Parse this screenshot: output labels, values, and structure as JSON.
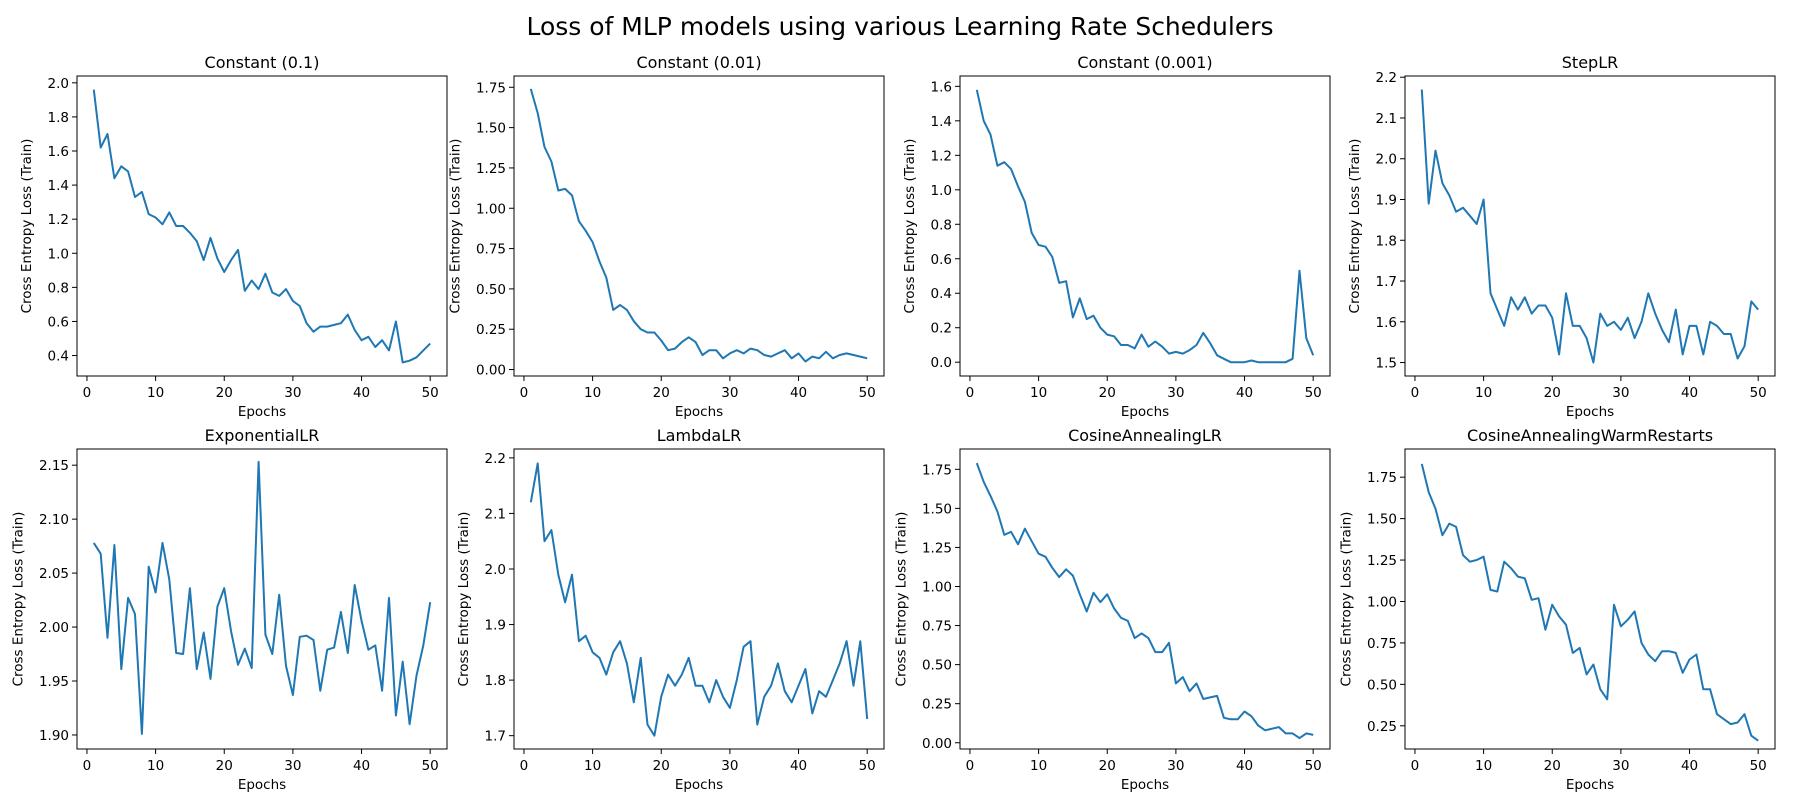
{
  "figure": {
    "title": "Loss of MLP models using various Learning Rate Schedulers",
    "line_color": "#1f77b4"
  },
  "chart_data": [
    {
      "type": "line",
      "title": "Constant (0.1)",
      "xlabel": "Epochs",
      "ylabel": "Cross Entropy Loss (Train)",
      "xlim": [
        -1.45,
        52.45
      ],
      "ylim": [
        0.28,
        2.04
      ],
      "xticks": [
        0,
        10,
        20,
        30,
        40,
        50
      ],
      "yticks": [
        0.4,
        0.6,
        0.8,
        1.0,
        1.2,
        1.4,
        1.6,
        1.8,
        2.0
      ],
      "ytick_labels": [
        "0.4",
        "0.6",
        "0.8",
        "1.0",
        "1.2",
        "1.4",
        "1.6",
        "1.8",
        "2.0"
      ],
      "grid": false,
      "series": [
        {
          "x": [
            1,
            2,
            3,
            4,
            5,
            6,
            7,
            8,
            9,
            10,
            11,
            12,
            13,
            14,
            15,
            16,
            17,
            18,
            19,
            20,
            21,
            22,
            23,
            24,
            25,
            26,
            27,
            28,
            29,
            30,
            31,
            32,
            33,
            34,
            35,
            36,
            37,
            38,
            39,
            40,
            41,
            42,
            43,
            44,
            45,
            46,
            47,
            48,
            49,
            50
          ],
          "values": [
            1.96,
            1.62,
            1.7,
            1.44,
            1.51,
            1.48,
            1.33,
            1.36,
            1.23,
            1.21,
            1.17,
            1.24,
            1.16,
            1.16,
            1.12,
            1.07,
            0.96,
            1.09,
            0.97,
            0.89,
            0.96,
            1.02,
            0.78,
            0.84,
            0.79,
            0.88,
            0.77,
            0.75,
            0.79,
            0.72,
            0.69,
            0.59,
            0.54,
            0.57,
            0.57,
            0.58,
            0.59,
            0.64,
            0.55,
            0.49,
            0.51,
            0.45,
            0.49,
            0.43,
            0.6,
            0.36,
            0.37,
            0.39,
            0.43,
            0.47
          ]
        }
      ]
    },
    {
      "type": "line",
      "title": "Constant (0.01)",
      "xlabel": "Epochs",
      "ylabel": "Cross Entropy Loss (Train)",
      "xlim": [
        -1.45,
        52.45
      ],
      "ylim": [
        -0.04,
        1.82
      ],
      "xticks": [
        0,
        10,
        20,
        30,
        40,
        50
      ],
      "yticks": [
        0.0,
        0.25,
        0.5,
        0.75,
        1.0,
        1.25,
        1.5,
        1.75
      ],
      "ytick_labels": [
        "0.00",
        "0.25",
        "0.50",
        "0.75",
        "1.00",
        "1.25",
        "1.50",
        "1.75"
      ],
      "grid": false,
      "series": [
        {
          "x": [
            1,
            2,
            3,
            4,
            5,
            6,
            7,
            8,
            9,
            10,
            11,
            12,
            13,
            14,
            15,
            16,
            17,
            18,
            19,
            20,
            21,
            22,
            23,
            24,
            25,
            26,
            27,
            28,
            29,
            30,
            31,
            32,
            33,
            34,
            35,
            36,
            37,
            38,
            39,
            40,
            41,
            42,
            43,
            44,
            45,
            46,
            47,
            48,
            49,
            50
          ],
          "values": [
            1.74,
            1.59,
            1.38,
            1.29,
            1.11,
            1.12,
            1.08,
            0.92,
            0.86,
            0.79,
            0.67,
            0.57,
            0.37,
            0.4,
            0.37,
            0.3,
            0.25,
            0.23,
            0.23,
            0.18,
            0.12,
            0.13,
            0.17,
            0.2,
            0.17,
            0.09,
            0.12,
            0.12,
            0.07,
            0.1,
            0.12,
            0.1,
            0.13,
            0.12,
            0.09,
            0.08,
            0.1,
            0.12,
            0.07,
            0.1,
            0.05,
            0.08,
            0.07,
            0.11,
            0.07,
            0.09,
            0.1,
            0.09,
            0.08,
            0.07
          ]
        }
      ]
    },
    {
      "type": "line",
      "title": "Constant (0.001)",
      "xlabel": "Epochs",
      "ylabel": "Cross Entropy Loss (Train)",
      "xlim": [
        -1.45,
        52.45
      ],
      "ylim": [
        -0.08,
        1.66
      ],
      "xticks": [
        0,
        10,
        20,
        30,
        40,
        50
      ],
      "yticks": [
        0.0,
        0.2,
        0.4,
        0.6,
        0.8,
        1.0,
        1.2,
        1.4,
        1.6
      ],
      "ytick_labels": [
        "0.0",
        "0.2",
        "0.4",
        "0.6",
        "0.8",
        "1.0",
        "1.2",
        "1.4",
        "1.6"
      ],
      "grid": false,
      "series": [
        {
          "x": [
            1,
            2,
            3,
            4,
            5,
            6,
            7,
            8,
            9,
            10,
            11,
            12,
            13,
            14,
            15,
            16,
            17,
            18,
            19,
            20,
            21,
            22,
            23,
            24,
            25,
            26,
            27,
            28,
            29,
            30,
            31,
            32,
            33,
            34,
            35,
            36,
            37,
            38,
            39,
            40,
            41,
            42,
            43,
            44,
            45,
            46,
            47,
            48,
            49,
            50
          ],
          "values": [
            1.58,
            1.4,
            1.32,
            1.14,
            1.16,
            1.12,
            1.02,
            0.93,
            0.75,
            0.68,
            0.67,
            0.61,
            0.46,
            0.47,
            0.26,
            0.37,
            0.25,
            0.27,
            0.2,
            0.16,
            0.15,
            0.1,
            0.1,
            0.08,
            0.16,
            0.09,
            0.12,
            0.09,
            0.05,
            0.06,
            0.05,
            0.07,
            0.1,
            0.17,
            0.11,
            0.04,
            0.02,
            0.0,
            0.0,
            0.0,
            0.01,
            0.0,
            0.0,
            0.0,
            0.0,
            0.0,
            0.02,
            0.53,
            0.14,
            0.04
          ]
        }
      ]
    },
    {
      "type": "line",
      "title": "StepLR",
      "xlabel": "Epochs",
      "ylabel": "Cross Entropy Loss (Train)",
      "xlim": [
        -1.45,
        52.45
      ],
      "ylim": [
        1.467,
        2.203
      ],
      "xticks": [
        0,
        10,
        20,
        30,
        40,
        50
      ],
      "yticks": [
        1.5,
        1.6,
        1.7,
        1.8,
        1.9,
        2.0,
        2.1,
        2.2
      ],
      "ytick_labels": [
        "1.5",
        "1.6",
        "1.7",
        "1.8",
        "1.9",
        "2.0",
        "2.1",
        "2.2"
      ],
      "grid": false,
      "series": [
        {
          "x": [
            1,
            2,
            3,
            4,
            5,
            6,
            7,
            8,
            9,
            10,
            11,
            12,
            13,
            14,
            15,
            16,
            17,
            18,
            19,
            20,
            21,
            22,
            23,
            24,
            25,
            26,
            27,
            28,
            29,
            30,
            31,
            32,
            33,
            34,
            35,
            36,
            37,
            38,
            39,
            40,
            41,
            42,
            43,
            44,
            45,
            46,
            47,
            48,
            49,
            50
          ],
          "values": [
            2.17,
            1.89,
            2.02,
            1.94,
            1.91,
            1.87,
            1.88,
            1.86,
            1.84,
            1.9,
            1.67,
            1.63,
            1.59,
            1.66,
            1.63,
            1.66,
            1.62,
            1.64,
            1.64,
            1.61,
            1.52,
            1.67,
            1.59,
            1.59,
            1.56,
            1.5,
            1.62,
            1.59,
            1.6,
            1.58,
            1.61,
            1.56,
            1.6,
            1.67,
            1.62,
            1.58,
            1.55,
            1.63,
            1.52,
            1.59,
            1.59,
            1.52,
            1.6,
            1.59,
            1.57,
            1.57,
            1.51,
            1.54,
            1.65,
            1.63
          ]
        }
      ]
    },
    {
      "type": "line",
      "title": "ExponentialLR",
      "xlabel": "Epochs",
      "ylabel": "Cross Entropy Loss (Train)",
      "xlim": [
        -1.45,
        52.45
      ],
      "ylim": [
        1.887,
        2.165
      ],
      "xticks": [
        0,
        10,
        20,
        30,
        40,
        50
      ],
      "yticks": [
        1.9,
        1.95,
        2.0,
        2.05,
        2.1,
        2.15
      ],
      "ytick_labels": [
        "1.90",
        "1.95",
        "2.00",
        "2.05",
        "2.10",
        "2.15"
      ],
      "grid": false,
      "series": [
        {
          "x": [
            1,
            2,
            3,
            4,
            5,
            6,
            7,
            8,
            9,
            10,
            11,
            12,
            13,
            14,
            15,
            16,
            17,
            18,
            19,
            20,
            21,
            22,
            23,
            24,
            25,
            26,
            27,
            28,
            29,
            30,
            31,
            32,
            33,
            34,
            35,
            36,
            37,
            38,
            39,
            40,
            41,
            42,
            43,
            44,
            45,
            46,
            47,
            48,
            49,
            50
          ],
          "values": [
            2.078,
            2.068,
            1.99,
            2.076,
            1.961,
            2.027,
            2.012,
            1.901,
            2.056,
            2.032,
            2.078,
            2.044,
            1.976,
            1.975,
            2.036,
            1.961,
            1.995,
            1.952,
            2.019,
            2.036,
            1.996,
            1.965,
            1.98,
            1.962,
            2.153,
            1.993,
            1.975,
            2.03,
            1.964,
            1.937,
            1.991,
            1.992,
            1.988,
            1.941,
            1.979,
            1.981,
            2.014,
            1.976,
            2.039,
            2.006,
            1.979,
            1.983,
            1.941,
            2.027,
            1.918,
            1.968,
            1.91,
            1.955,
            1.983,
            2.023
          ]
        }
      ]
    },
    {
      "type": "line",
      "title": "LambdaLR",
      "xlabel": "Epochs",
      "ylabel": "Cross Entropy Loss (Train)",
      "xlim": [
        -1.45,
        52.45
      ],
      "ylim": [
        1.676,
        2.216
      ],
      "xticks": [
        0,
        10,
        20,
        30,
        40,
        50
      ],
      "yticks": [
        1.7,
        1.8,
        1.9,
        2.0,
        2.1,
        2.2
      ],
      "ytick_labels": [
        "1.7",
        "1.8",
        "1.9",
        "2.0",
        "2.1",
        "2.2"
      ],
      "grid": false,
      "series": [
        {
          "x": [
            1,
            2,
            3,
            4,
            5,
            6,
            7,
            8,
            9,
            10,
            11,
            12,
            13,
            14,
            15,
            16,
            17,
            18,
            19,
            20,
            21,
            22,
            23,
            24,
            25,
            26,
            27,
            28,
            29,
            30,
            31,
            32,
            33,
            34,
            35,
            36,
            37,
            38,
            39,
            40,
            41,
            42,
            43,
            44,
            45,
            46,
            47,
            48,
            49,
            50
          ],
          "values": [
            2.12,
            2.19,
            2.05,
            2.07,
            1.99,
            1.94,
            1.99,
            1.87,
            1.88,
            1.85,
            1.84,
            1.81,
            1.85,
            1.87,
            1.83,
            1.76,
            1.84,
            1.72,
            1.7,
            1.77,
            1.81,
            1.79,
            1.81,
            1.84,
            1.79,
            1.79,
            1.76,
            1.8,
            1.77,
            1.75,
            1.8,
            1.86,
            1.87,
            1.72,
            1.77,
            1.79,
            1.83,
            1.78,
            1.76,
            1.79,
            1.82,
            1.74,
            1.78,
            1.77,
            1.8,
            1.83,
            1.87,
            1.79,
            1.87,
            1.73
          ]
        }
      ]
    },
    {
      "type": "line",
      "title": "CosineAnnealingLR",
      "xlabel": "Epochs",
      "ylabel": "Cross Entropy Loss (Train)",
      "xlim": [
        -1.45,
        52.45
      ],
      "ylim": [
        -0.04,
        1.88
      ],
      "xticks": [
        0,
        10,
        20,
        30,
        40,
        50
      ],
      "yticks": [
        0.0,
        0.25,
        0.5,
        0.75,
        1.0,
        1.25,
        1.5,
        1.75
      ],
      "ytick_labels": [
        "0.00",
        "0.25",
        "0.50",
        "0.75",
        "1.00",
        "1.25",
        "1.50",
        "1.75"
      ],
      "grid": false,
      "series": [
        {
          "x": [
            1,
            2,
            3,
            4,
            5,
            6,
            7,
            8,
            9,
            10,
            11,
            12,
            13,
            14,
            15,
            16,
            17,
            18,
            19,
            20,
            21,
            22,
            23,
            24,
            25,
            26,
            27,
            28,
            29,
            30,
            31,
            32,
            33,
            34,
            35,
            36,
            37,
            38,
            39,
            40,
            41,
            42,
            43,
            44,
            45,
            46,
            47,
            48,
            49,
            50
          ],
          "values": [
            1.79,
            1.67,
            1.58,
            1.48,
            1.33,
            1.35,
            1.27,
            1.37,
            1.29,
            1.21,
            1.19,
            1.12,
            1.06,
            1.11,
            1.07,
            0.95,
            0.84,
            0.96,
            0.9,
            0.95,
            0.86,
            0.8,
            0.78,
            0.67,
            0.7,
            0.67,
            0.58,
            0.58,
            0.64,
            0.38,
            0.42,
            0.33,
            0.38,
            0.28,
            0.29,
            0.3,
            0.16,
            0.15,
            0.15,
            0.2,
            0.17,
            0.11,
            0.08,
            0.09,
            0.1,
            0.06,
            0.06,
            0.03,
            0.06,
            0.05
          ]
        }
      ]
    },
    {
      "type": "line",
      "title": "CosineAnnealingWarmRestarts",
      "xlabel": "Epochs",
      "ylabel": "Cross Entropy Loss (Train)",
      "xlim": [
        -1.45,
        52.45
      ],
      "ylim": [
        0.11,
        1.92
      ],
      "xticks": [
        0,
        10,
        20,
        30,
        40,
        50
      ],
      "yticks": [
        0.25,
        0.5,
        0.75,
        1.0,
        1.25,
        1.5,
        1.75
      ],
      "ytick_labels": [
        "0.25",
        "0.50",
        "0.75",
        "1.00",
        "1.25",
        "1.50",
        "1.75"
      ],
      "grid": false,
      "series": [
        {
          "x": [
            1,
            2,
            3,
            4,
            5,
            6,
            7,
            8,
            9,
            10,
            11,
            12,
            13,
            14,
            15,
            16,
            17,
            18,
            19,
            20,
            21,
            22,
            23,
            24,
            25,
            26,
            27,
            28,
            29,
            30,
            31,
            32,
            33,
            34,
            35,
            36,
            37,
            38,
            39,
            40,
            41,
            42,
            43,
            44,
            45,
            46,
            47,
            48,
            49,
            50
          ],
          "values": [
            1.83,
            1.66,
            1.56,
            1.4,
            1.47,
            1.45,
            1.28,
            1.24,
            1.25,
            1.27,
            1.07,
            1.06,
            1.24,
            1.2,
            1.15,
            1.14,
            1.01,
            1.02,
            0.83,
            0.98,
            0.91,
            0.86,
            0.69,
            0.72,
            0.56,
            0.62,
            0.47,
            0.41,
            0.98,
            0.85,
            0.89,
            0.94,
            0.75,
            0.68,
            0.64,
            0.7,
            0.7,
            0.69,
            0.57,
            0.65,
            0.68,
            0.47,
            0.47,
            0.32,
            0.29,
            0.26,
            0.27,
            0.32,
            0.19,
            0.16
          ]
        }
      ]
    }
  ]
}
